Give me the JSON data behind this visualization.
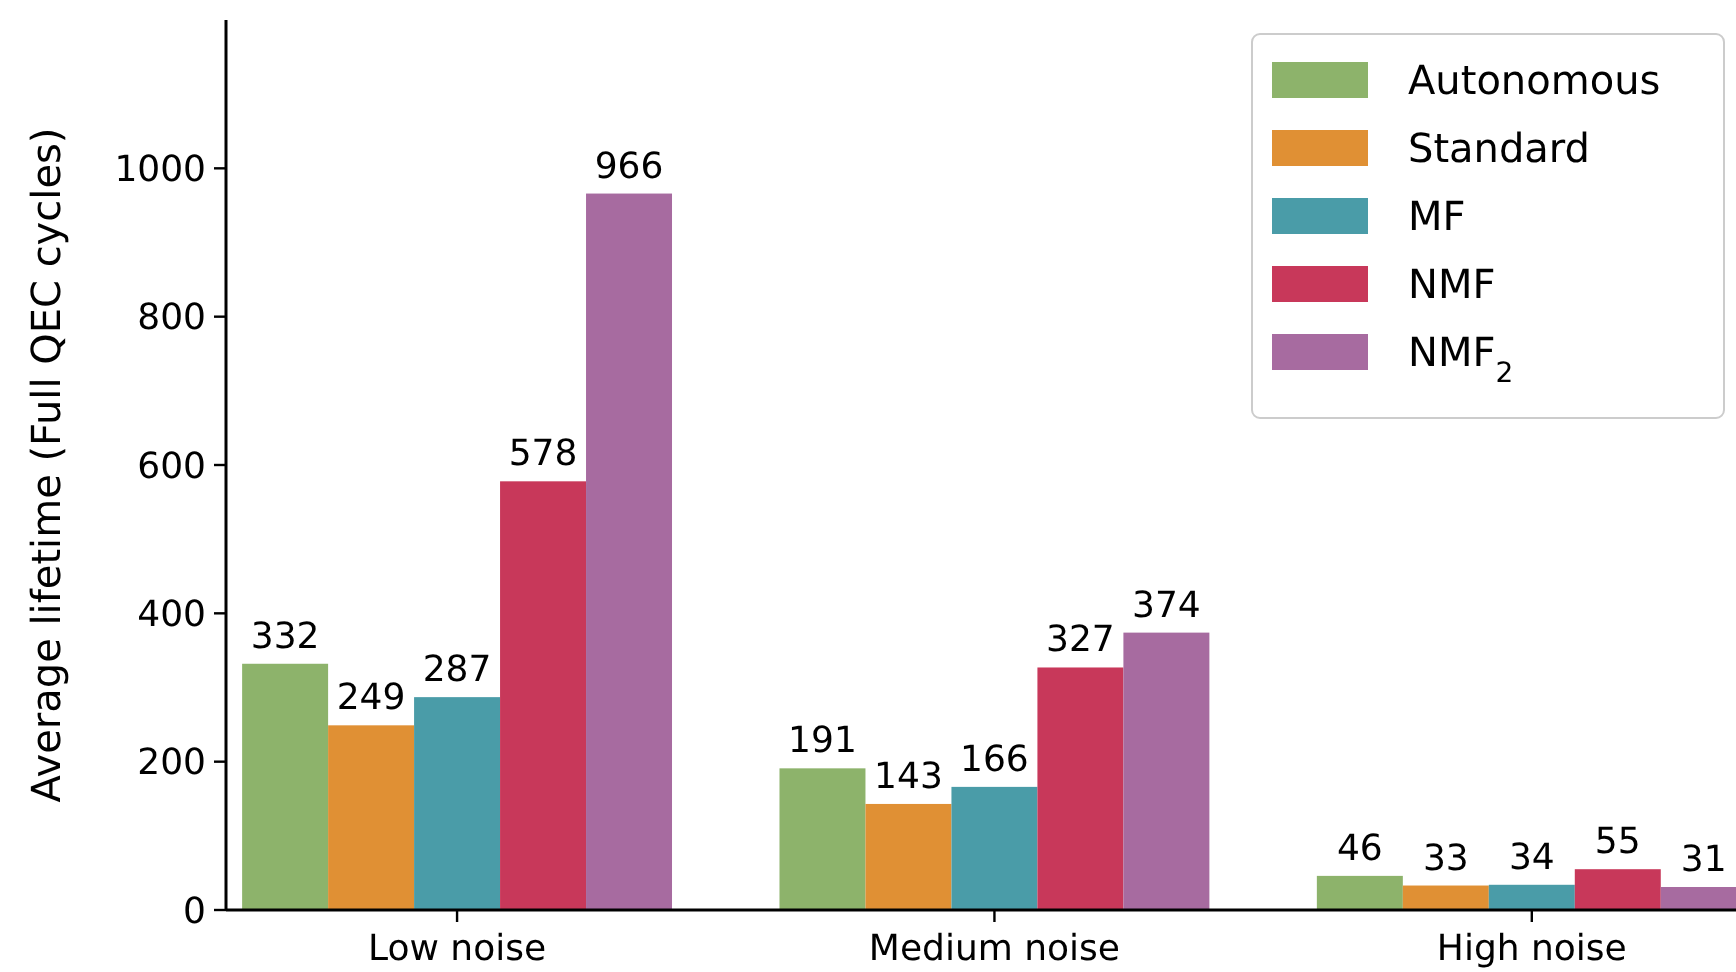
{
  "chart_data": {
    "type": "bar",
    "ylabel": "Average lifetime (Full QEC cycles)",
    "categories": [
      "Low noise",
      "Medium noise",
      "High noise"
    ],
    "series": [
      {
        "name": "Autonomous",
        "color": "#8db36b",
        "values": [
          332,
          191,
          46
        ]
      },
      {
        "name": "Standard",
        "color": "#e09034",
        "values": [
          249,
          143,
          33
        ]
      },
      {
        "name": "MF",
        "color": "#4a9ca8",
        "values": [
          287,
          166,
          34
        ]
      },
      {
        "name": "NMF",
        "color": "#c8385a",
        "values": [
          578,
          327,
          55
        ]
      },
      {
        "name": "NMF$_{2}$",
        "color": "#a76ba0",
        "values": [
          966,
          374,
          31
        ]
      }
    ],
    "ylim": [
      0,
      1200
    ],
    "yticks": [
      0,
      200,
      400,
      600,
      800,
      1000
    ],
    "data_labels": true,
    "legend": "top right",
    "grid": false
  }
}
